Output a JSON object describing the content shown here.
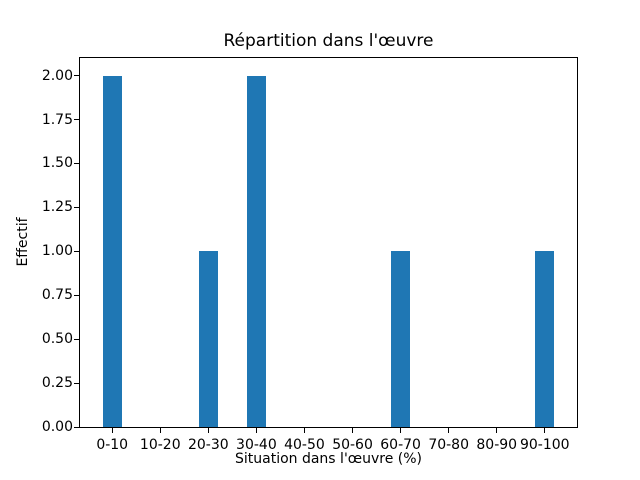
{
  "figure": {
    "background": "#ffffff"
  },
  "chart_data": {
    "type": "bar",
    "title": "Répartition dans l'œuvre",
    "xlabel": "Situation dans l'œuvre (%)",
    "ylabel": "Effectif",
    "categories": [
      "0-10",
      "10-20",
      "20-30",
      "30-40",
      "40-50",
      "50-60",
      "60-70",
      "70-80",
      "80-90",
      "90-100"
    ],
    "values": [
      2,
      0,
      1,
      2,
      0,
      0,
      1,
      0,
      0,
      1
    ],
    "ytick_labels": [
      "0.00",
      "0.25",
      "0.50",
      "0.75",
      "1.00",
      "1.25",
      "1.50",
      "1.75",
      "2.00"
    ],
    "ylim": [
      0,
      2.1
    ],
    "xlim": [
      -0.67,
      9.67
    ],
    "bar_width": 0.4,
    "bar_color": "#1f77b4",
    "axis_color": "#000000",
    "text_color": "#000000",
    "grid": false,
    "legend_position": "none"
  }
}
